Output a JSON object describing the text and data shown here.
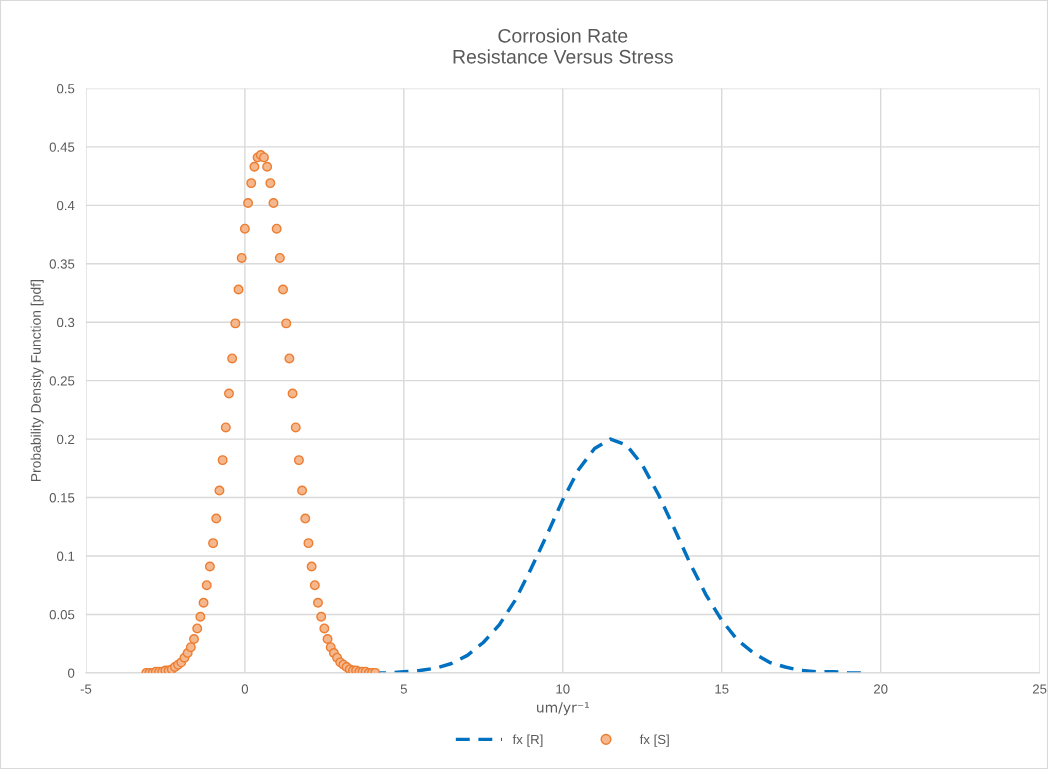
{
  "chart_data": {
    "type": "scatter",
    "title": "Corrosion Rate\nResistance Versus Stress",
    "xlabel": "um/yr⁻¹",
    "ylabel": "Probability Density Function [pdf]",
    "xlim": [
      -5,
      25
    ],
    "xticks": [
      -5,
      0,
      5,
      10,
      15,
      20,
      25
    ],
    "ylim": [
      0,
      0.5
    ],
    "yticks": [
      0,
      0.05,
      0.1,
      0.15,
      0.2,
      0.25,
      0.3,
      0.35,
      0.4,
      0.45,
      0.5
    ],
    "grid": true,
    "legend": "bottom",
    "series": [
      {
        "name": "fx [R]",
        "type": "line",
        "line_style": "dashed",
        "marker": "none",
        "color": "#0070c0",
        "x": [
          4,
          4.5,
          5,
          5.5,
          6,
          6.5,
          7,
          7.5,
          8,
          8.5,
          9,
          9.5,
          10,
          10.5,
          11,
          11.5,
          12,
          12.5,
          13,
          13.5,
          14,
          14.5,
          15,
          15.5,
          16,
          16.5,
          17,
          17.5,
          18,
          18.5,
          19,
          19.5
        ],
        "values": [
          0.0,
          0.0,
          0.001,
          0.002,
          0.004,
          0.008,
          0.015,
          0.026,
          0.041,
          0.062,
          0.089,
          0.118,
          0.148,
          0.174,
          0.192,
          0.2,
          0.195,
          0.178,
          0.153,
          0.124,
          0.094,
          0.067,
          0.045,
          0.028,
          0.017,
          0.009,
          0.005,
          0.002,
          0.001,
          0.001,
          0.0,
          0.0
        ]
      },
      {
        "name": "fx [S]",
        "marker": "circle",
        "color": "#ed7d31",
        "x": [
          -3.1,
          -3.0,
          -2.9,
          -2.8,
          -2.7,
          -2.6,
          -2.5,
          -2.4,
          -2.3,
          -2.2,
          -2.1,
          -2.0,
          -1.9,
          -1.8,
          -1.7,
          -1.6,
          -1.5,
          -1.4,
          -1.3,
          -1.2,
          -1.1,
          -1.0,
          -0.9,
          -0.8,
          -0.7,
          -0.6,
          -0.5,
          -0.4,
          -0.3,
          -0.2,
          -0.1,
          0.0,
          0.1,
          0.2,
          0.3,
          0.4,
          0.5,
          0.6,
          0.7,
          0.8,
          0.9,
          1.0,
          1.1,
          1.2,
          1.3,
          1.4,
          1.5,
          1.6,
          1.7,
          1.8,
          1.9,
          2.0,
          2.1,
          2.2,
          2.3,
          2.4,
          2.5,
          2.6,
          2.7,
          2.8,
          2.9,
          3.0,
          3.1,
          3.2,
          3.3,
          3.4,
          3.5,
          3.6,
          3.7,
          3.8,
          3.9,
          4.0,
          4.1
        ],
        "values": [
          0.0,
          0.0,
          0.0,
          0.001,
          0.001,
          0.001,
          0.002,
          0.002,
          0.003,
          0.005,
          0.007,
          0.009,
          0.013,
          0.017,
          0.022,
          0.029,
          0.038,
          0.048,
          0.06,
          0.075,
          0.091,
          0.111,
          0.132,
          0.156,
          0.182,
          0.21,
          0.239,
          0.269,
          0.299,
          0.328,
          0.355,
          0.38,
          0.402,
          0.419,
          0.433,
          0.441,
          0.443,
          0.441,
          0.433,
          0.419,
          0.402,
          0.38,
          0.355,
          0.328,
          0.299,
          0.269,
          0.239,
          0.21,
          0.182,
          0.156,
          0.132,
          0.111,
          0.091,
          0.075,
          0.06,
          0.048,
          0.038,
          0.029,
          0.022,
          0.017,
          0.013,
          0.009,
          0.007,
          0.005,
          0.003,
          0.002,
          0.002,
          0.001,
          0.001,
          0.001,
          0.0,
          0.0,
          0.0
        ]
      }
    ]
  }
}
